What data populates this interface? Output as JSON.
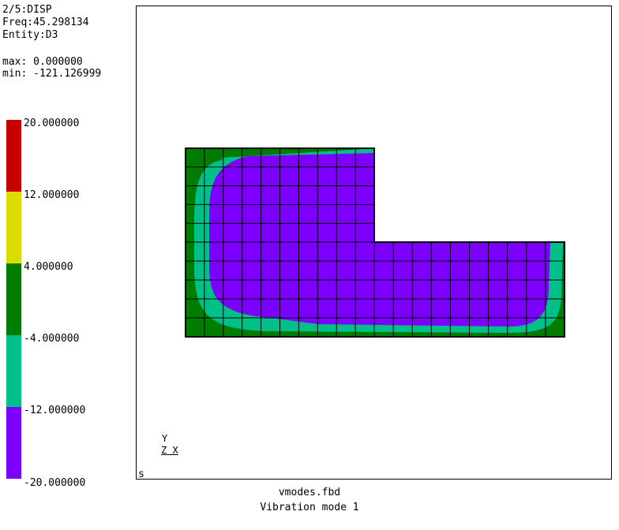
{
  "header": {
    "mode": "2/5:DISP",
    "freq": "Freq:45.298134",
    "entity": "Entity:D3",
    "max": "max: 0.000000",
    "min": "min: -121.126999"
  },
  "legend": {
    "labels": [
      "20.000000",
      "12.000000",
      "4.000000",
      "-4.000000",
      "-12.000000",
      "-20.000000"
    ],
    "colors": [
      "#c80000",
      "#dcdc00",
      "#007d00",
      "#00c08a",
      "#7d00ff"
    ]
  },
  "viewport": {
    "corner_label": "s",
    "axis_y": "Y",
    "axis_zx": "Z X"
  },
  "footer": {
    "filename": "vmodes.fbd",
    "title": "Vibration mode 1"
  }
}
